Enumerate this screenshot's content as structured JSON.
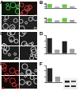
{
  "panels": [
    "A",
    "B",
    "C",
    "D",
    "E",
    "F"
  ],
  "chart_data": [
    {
      "type": "bar",
      "categories": [
        null,
        null,
        null,
        null
      ],
      "values": [
        1.0,
        0.3,
        0.9,
        0.4
      ],
      "colors": [
        "#6cc24a",
        "#9e9e9e",
        "#6cc24a",
        "#9e9e9e"
      ],
      "ylim": [
        0,
        1.2
      ],
      "yticks": [
        0,
        0.4,
        0.8,
        1.2
      ],
      "grid": false,
      "tick_labels": false
    },
    {
      "type": "bar",
      "categories": [
        null,
        null,
        null,
        null
      ],
      "values": [
        1.0,
        0.5,
        1.1,
        0.6
      ],
      "colors": [
        "#6cc24a",
        "#9e9e9e",
        "#6cc24a",
        "#9e9e9e"
      ],
      "ylim": [
        0,
        1.2
      ],
      "yticks": [
        0,
        0.4,
        0.8,
        1.2
      ],
      "grid": false,
      "tick_labels": false
    },
    {
      "type": "bar",
      "categories": [
        null,
        null,
        null,
        null
      ],
      "values": [
        1.0,
        0.25,
        0.8,
        0.3
      ],
      "colors": [
        "#222222",
        "#9e9e9e",
        "#222222",
        "#9e9e9e"
      ],
      "ylim": [
        0,
        1.2
      ],
      "yticks": [
        0,
        0.4,
        0.8,
        1.2
      ],
      "grid": false,
      "tick_labels": false
    },
    {
      "type": "bar",
      "categories": [
        null,
        null
      ],
      "values": [
        1.0,
        0.4
      ],
      "colors": [
        "#222222",
        "#9e9e9e"
      ],
      "ylim": [
        0,
        1.2
      ],
      "yticks": [
        0,
        0.4,
        0.8,
        1.2
      ],
      "grid": false,
      "tick_labels": false
    }
  ]
}
